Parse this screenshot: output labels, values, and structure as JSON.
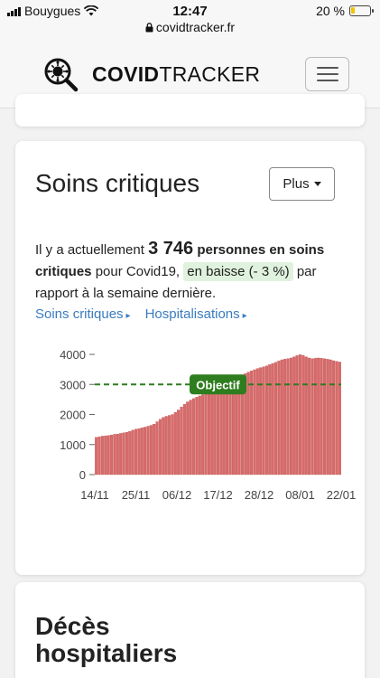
{
  "status_bar": {
    "carrier": "Bouygues",
    "time": "12:47",
    "url": "covidtracker.fr",
    "battery": "20 %",
    "battery_level": 0.2
  },
  "header": {
    "brand_bold": "COVID",
    "brand_light": "TRACKER"
  },
  "card": {
    "title": "Soins critiques",
    "plus_label": "Plus",
    "desc_prefix": "Il y a actuellement",
    "count": "3 746",
    "count_suffix": "personnes en soins critiques",
    "desc_middle": "pour Covid19,",
    "trend": "en baisse (- 3 %)",
    "desc_suffix": "par rapport à la semaine dernière.",
    "link1": "Soins critiques",
    "link2": "Hospitalisations",
    "link_marker": "▸"
  },
  "chart_data": {
    "type": "bar",
    "series": [
      {
        "values": [
          1240,
          1260,
          1280,
          1290,
          1300,
          1320,
          1340,
          1350,
          1370,
          1390,
          1410,
          1440,
          1480,
          1510,
          1530,
          1560,
          1580,
          1610,
          1640,
          1680,
          1760,
          1840,
          1900,
          1940,
          1970,
          2000,
          2070,
          2150,
          2250,
          2340,
          2420,
          2480,
          2530,
          2580,
          2620,
          2660,
          2700,
          2740,
          2780,
          2820,
          2870,
          2920,
          2970,
          3020,
          3070,
          3120,
          3180,
          3240,
          3300,
          3360,
          3410,
          3450,
          3490,
          3530,
          3560,
          3590,
          3620,
          3660,
          3700,
          3740,
          3780,
          3820,
          3840,
          3860,
          3880,
          3920,
          3960,
          3990,
          3970,
          3920,
          3880,
          3860,
          3870,
          3880,
          3870,
          3860,
          3840,
          3820,
          3790,
          3770,
          3746
        ]
      }
    ],
    "x_ticks": [
      "14/11",
      "25/11",
      "06/12",
      "17/12",
      "28/12",
      "08/01",
      "22/01"
    ],
    "y_ticks": [
      0,
      1000,
      2000,
      3000,
      4000
    ],
    "ylim": [
      0,
      4000
    ],
    "objective": {
      "label": "Objectif",
      "value": 3000
    },
    "bar_color": "#d86a6a",
    "objective_color": "#2e7d1f",
    "grid": false
  },
  "next_card": {
    "title": "Décès hospitaliers"
  }
}
